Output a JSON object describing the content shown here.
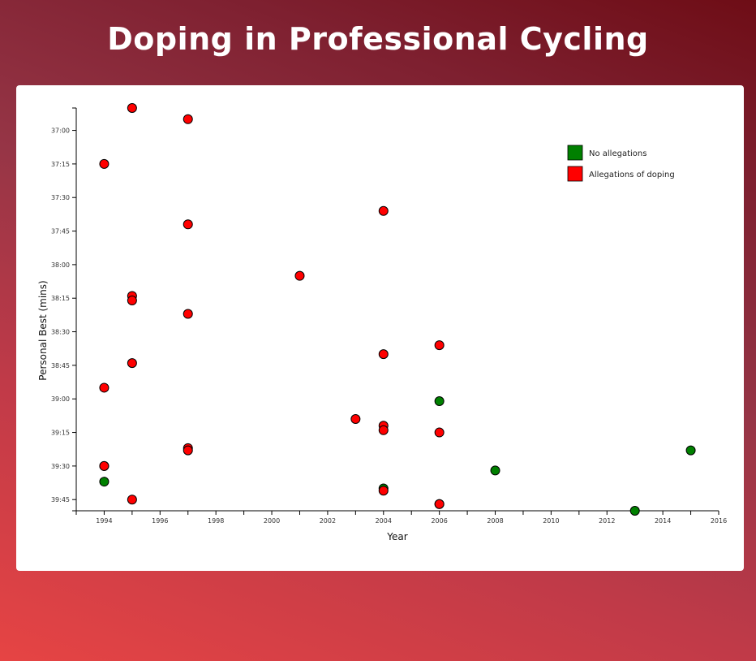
{
  "header": {
    "title": "Doping in Professional Cycling"
  },
  "colors": {
    "no_allegations": "#008000",
    "allegations": "#ff0000",
    "point_stroke": "#000000"
  },
  "chart_data": {
    "type": "scatter",
    "title": "Doping in Professional Cycling",
    "xlabel": "Year",
    "ylabel": "Personal Best (mins)",
    "xlim": [
      1993,
      2016
    ],
    "ylim_seconds": [
      2210,
      2390
    ],
    "x_ticks": [
      1994,
      1996,
      1998,
      2000,
      2002,
      2004,
      2006,
      2008,
      2010,
      2012,
      2014,
      2016
    ],
    "y_ticks": [
      "37:00",
      "37:15",
      "37:30",
      "37:45",
      "38:00",
      "38:15",
      "38:30",
      "38:45",
      "39:00",
      "39:15",
      "39:30",
      "39:45"
    ],
    "legend": {
      "placement": "top-right",
      "entries": [
        {
          "label": "No allegations",
          "color": "#008000"
        },
        {
          "label": "Allegations of doping",
          "color": "#ff0000"
        }
      ]
    },
    "series": [
      {
        "name": "No allegations",
        "color": "#008000",
        "points": [
          {
            "year": 1994,
            "time": "39:37"
          },
          {
            "year": 2004,
            "time": "39:40"
          },
          {
            "year": 2006,
            "time": "39:01"
          },
          {
            "year": 2008,
            "time": "39:32"
          },
          {
            "year": 2013,
            "time": "39:50"
          },
          {
            "year": 2015,
            "time": "39:23"
          }
        ]
      },
      {
        "name": "Allegations of doping",
        "color": "#ff0000",
        "points": [
          {
            "year": 1995,
            "time": "36:50"
          },
          {
            "year": 1997,
            "time": "36:55"
          },
          {
            "year": 1994,
            "time": "37:15"
          },
          {
            "year": 2004,
            "time": "37:36"
          },
          {
            "year": 1997,
            "time": "37:42"
          },
          {
            "year": 2001,
            "time": "38:05"
          },
          {
            "year": 1995,
            "time": "38:14"
          },
          {
            "year": 1995,
            "time": "38:16"
          },
          {
            "year": 1997,
            "time": "38:22"
          },
          {
            "year": 2006,
            "time": "38:36"
          },
          {
            "year": 2004,
            "time": "38:40"
          },
          {
            "year": 1995,
            "time": "38:44"
          },
          {
            "year": 1994,
            "time": "38:55"
          },
          {
            "year": 2003,
            "time": "39:09"
          },
          {
            "year": 2004,
            "time": "39:12"
          },
          {
            "year": 2004,
            "time": "39:14"
          },
          {
            "year": 2006,
            "time": "39:15"
          },
          {
            "year": 1997,
            "time": "39:22"
          },
          {
            "year": 1997,
            "time": "39:23"
          },
          {
            "year": 1994,
            "time": "39:30"
          },
          {
            "year": 1994,
            "time": "39:30"
          },
          {
            "year": 2004,
            "time": "39:41"
          },
          {
            "year": 1995,
            "time": "39:45"
          },
          {
            "year": 2006,
            "time": "39:47"
          },
          {
            "year": 2006,
            "time": "39:47"
          }
        ]
      }
    ]
  }
}
